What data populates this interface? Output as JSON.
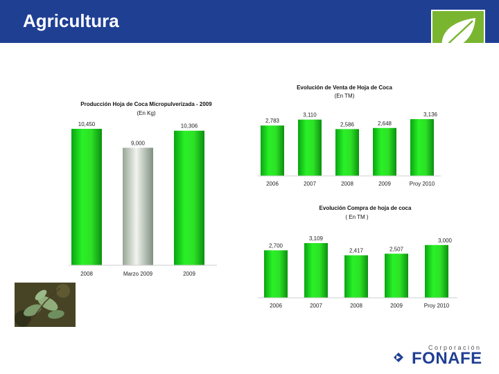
{
  "header": {
    "title": "Agricultura"
  },
  "colors": {
    "header_bg": "#1f3f93",
    "bar_green": "#22d81a",
    "bar_gray": "#b7c2b5",
    "logo_green": "#7ab530"
  },
  "icons": {
    "logo": "leaf-icon",
    "photo": "coca-leaf-photo",
    "brand_mark": "diamond-arrow-icon"
  },
  "brand": {
    "small": "Corporación",
    "name": "FONAFE"
  },
  "chart_data": [
    {
      "type": "bar",
      "title": "Producción Hoja de Coca Micropulverizada - 2009",
      "subtitle": "(En Kg)",
      "categories": [
        "2008",
        "Marzo 2009",
        "2009"
      ],
      "values": [
        10450,
        9000,
        10306
      ],
      "data_labels": [
        "10,450",
        "9,000",
        "10,306"
      ],
      "bar_styles": [
        "green",
        "gray",
        "green"
      ],
      "ylim": [
        0,
        10450
      ],
      "grid": false
    },
    {
      "type": "bar",
      "title": "Evolución de Venta de Hoja de Coca",
      "subtitle": "(En TM)",
      "categories": [
        "2006",
        "2007",
        "2008",
        "2009",
        "Proy 2010"
      ],
      "values": [
        2783,
        3110,
        2586,
        2648,
        3136
      ],
      "data_labels": [
        "2,783",
        "3,110",
        "2,586",
        "2,648",
        "3,136"
      ],
      "ylim": [
        0,
        3136
      ],
      "grid": false
    },
    {
      "type": "bar",
      "title": "Evolución Compra de hoja de coca",
      "subtitle": "( En TM )",
      "categories": [
        "2006",
        "2007",
        "2008",
        "2009",
        "Proy 2010"
      ],
      "values": [
        2700,
        3109,
        2417,
        2507,
        3000
      ],
      "data_labels": [
        "2,700",
        "3,109",
        "2,417",
        "2,507",
        "3,000"
      ],
      "ylim": [
        0,
        3109
      ],
      "grid": false
    }
  ]
}
